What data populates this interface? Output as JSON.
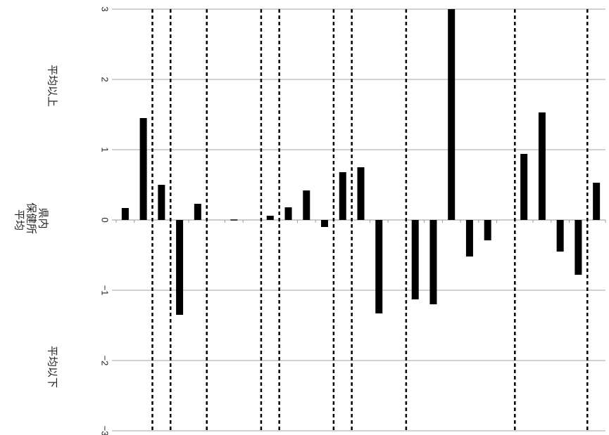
{
  "chart_data": {
    "type": "bar",
    "orientation": "rotated-90",
    "title": "",
    "ylim": [
      -3,
      3
    ],
    "yticks": [
      "3",
      "2",
      "1",
      "0",
      "−1",
      "−2",
      "−3"
    ],
    "yticks_values": [
      3,
      2,
      1,
      0,
      -1,
      -2,
      -3
    ],
    "labels": {
      "above": "平均以上",
      "baseline": [
        "県内",
        "保健所",
        "平均"
      ],
      "below": "平均以下"
    },
    "series": [
      {
        "values": [
          0.17,
          1.45,
          0.5,
          -1.35,
          0.23,
          null,
          -0.01,
          null,
          0.06,
          0.18,
          0.42,
          -0.1,
          0.68,
          0.75,
          -1.33,
          null,
          -1.13,
          -1.2,
          3.0,
          -0.52,
          -0.29,
          null,
          0.94,
          1.53,
          -0.45,
          -0.78,
          0.53
        ]
      }
    ],
    "group_separators_after_index": [
      1,
      2,
      4,
      7,
      8,
      11,
      12,
      15,
      21,
      25
    ],
    "grid": true,
    "colors": {
      "bar": "#000000",
      "grid": "#a6a6a6",
      "separator": "#000000"
    }
  }
}
